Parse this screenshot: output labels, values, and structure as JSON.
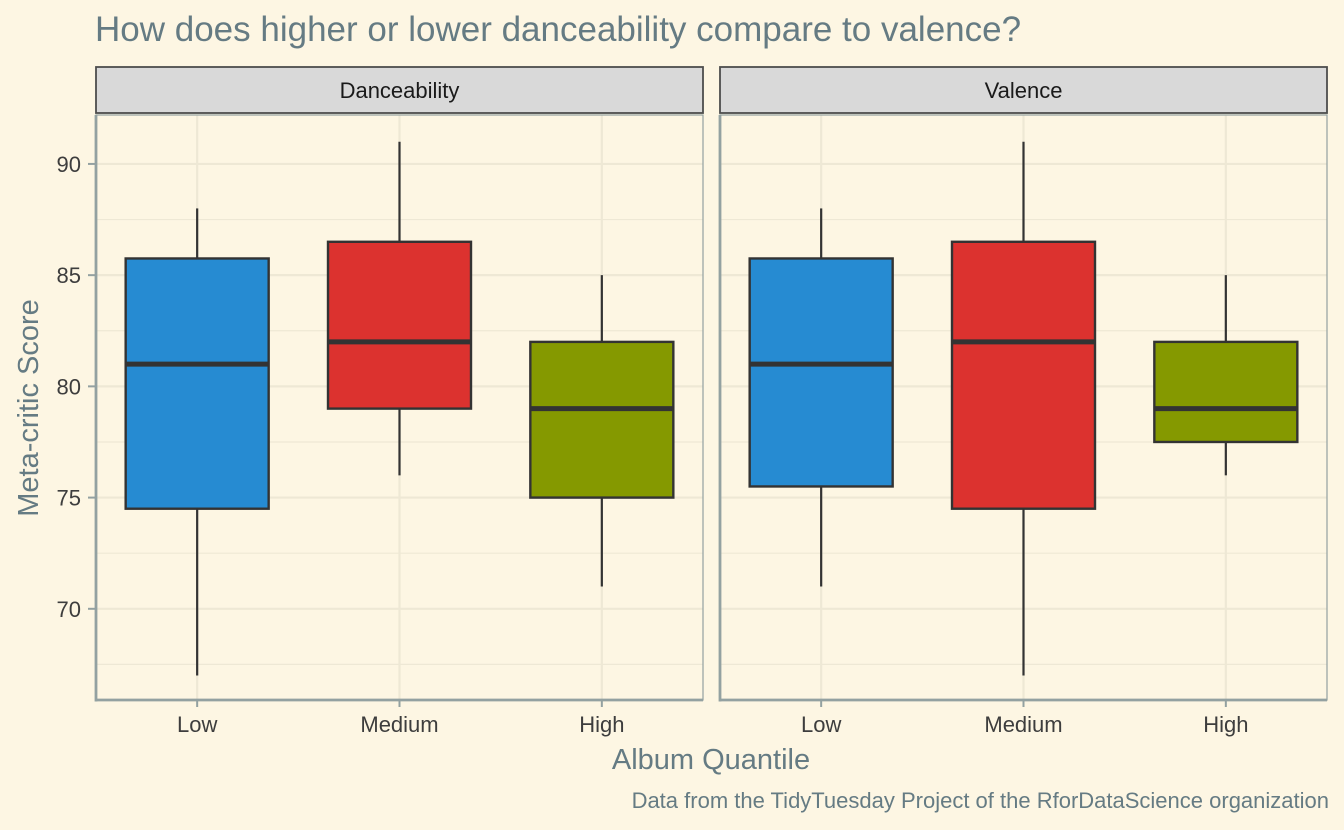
{
  "chart_data": {
    "type": "boxplot",
    "title": "How does higher or lower danceability compare to valence?",
    "xlabel": "Album Quantile",
    "ylabel": "Meta-critic Score",
    "caption": "Data from the TidyTuesday Project of the RforDataScience organization",
    "categories": [
      "Low",
      "Medium",
      "High"
    ],
    "ylim": [
      65.9,
      92.2
    ],
    "yticks": [
      70,
      75,
      80,
      85,
      90
    ],
    "ytick_labels": [
      "70",
      "75",
      "80",
      "85",
      "90"
    ],
    "grid": true,
    "legend": "none",
    "colors": {
      "Low": "#268bd2",
      "Medium": "#dc322f",
      "High": "#859900",
      "background": "#fdf6e3",
      "strip": "#d9d9d9",
      "axis": "#93a1a1",
      "grid": "#eee8d5"
    },
    "panels": [
      {
        "name": "Danceability",
        "boxes": [
          {
            "category": "Low",
            "min": 67,
            "q1": 74.5,
            "median": 81,
            "q3": 85.75,
            "max": 88
          },
          {
            "category": "Medium",
            "min": 76,
            "q1": 79,
            "median": 82,
            "q3": 86.5,
            "max": 91
          },
          {
            "category": "High",
            "min": 71,
            "q1": 75,
            "median": 79,
            "q3": 82,
            "max": 85
          }
        ]
      },
      {
        "name": "Valence",
        "boxes": [
          {
            "category": "Low",
            "min": 71,
            "q1": 75.5,
            "median": 81,
            "q3": 85.75,
            "max": 88
          },
          {
            "category": "Medium",
            "min": 67,
            "q1": 74.5,
            "median": 82,
            "q3": 86.5,
            "max": 91
          },
          {
            "category": "High",
            "min": 76,
            "q1": 77.5,
            "median": 79,
            "q3": 82,
            "max": 85
          }
        ]
      }
    ]
  }
}
